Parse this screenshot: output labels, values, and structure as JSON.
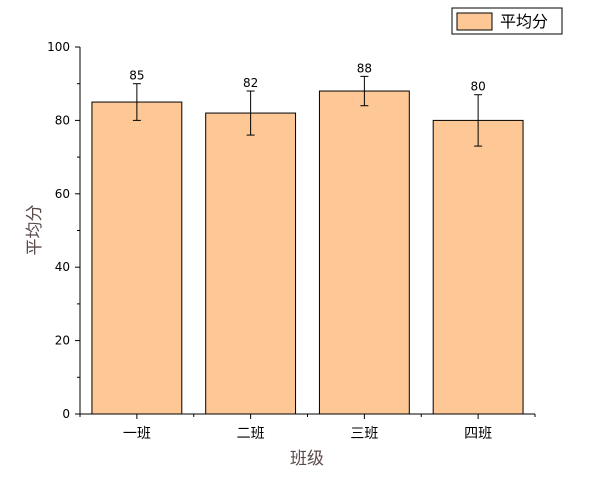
{
  "chart_data": {
    "type": "bar",
    "categories": [
      "一班",
      "二班",
      "三班",
      "四班"
    ],
    "series": [
      {
        "name": "平均分",
        "values": [
          85,
          82,
          88,
          80
        ],
        "error": [
          5,
          6,
          4,
          7
        ],
        "color": "#fdc896",
        "edge_color": "#000000"
      }
    ],
    "data_labels": [
      "85",
      "82",
      "88",
      "80"
    ],
    "xlabel": "班级",
    "ylabel": "平均分",
    "ylim": [
      0,
      100
    ],
    "yticks": [
      "0",
      "20",
      "40",
      "60",
      "80",
      "100"
    ],
    "axis_title_color": "#5a4a4a",
    "legend": {
      "position": "top-right",
      "label": "平均分"
    },
    "grid": false
  }
}
